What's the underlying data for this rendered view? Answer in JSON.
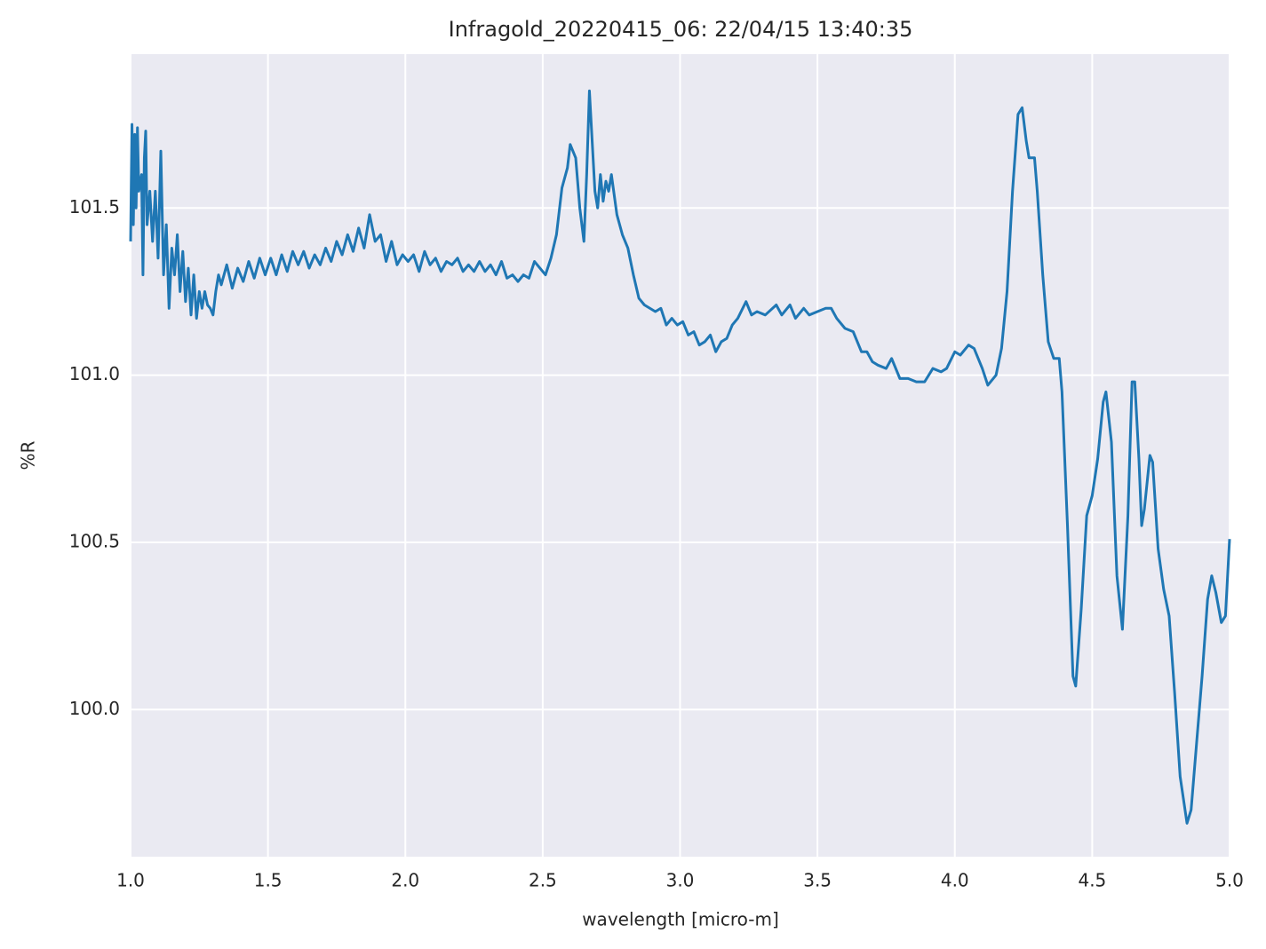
{
  "chart_data": {
    "type": "line",
    "title": "Infragold_20220415_06:  22/04/15 13:40:35",
    "xlabel": "wavelength [micro-m]",
    "ylabel": "%R",
    "color": "#1f77b4",
    "grid": true,
    "xlim": [
      1.0,
      5.0
    ],
    "ylim": [
      99.56,
      101.96
    ],
    "xticks": [
      {
        "value": 1.0,
        "label": "1.0"
      },
      1.5,
      {
        "value": 2.0,
        "label": "2.0"
      },
      2.5,
      {
        "value": 3.0,
        "label": "3.0"
      },
      3.5,
      {
        "value": 4.0,
        "label": "4.0"
      },
      4.5,
      {
        "value": 5.0,
        "label": "5.0"
      }
    ],
    "yticks": [
      {
        "value": 100.0,
        "label": "100.0"
      },
      100.5,
      {
        "value": 101.0,
        "label": "101.0"
      },
      101.5
    ],
    "x": [
      1.0,
      1.005,
      1.01,
      1.015,
      1.02,
      1.025,
      1.03,
      1.04,
      1.045,
      1.05,
      1.055,
      1.06,
      1.07,
      1.08,
      1.09,
      1.1,
      1.11,
      1.12,
      1.13,
      1.14,
      1.15,
      1.16,
      1.17,
      1.18,
      1.19,
      1.2,
      1.21,
      1.22,
      1.23,
      1.24,
      1.25,
      1.26,
      1.27,
      1.28,
      1.29,
      1.3,
      1.31,
      1.32,
      1.33,
      1.35,
      1.37,
      1.39,
      1.41,
      1.43,
      1.45,
      1.47,
      1.49,
      1.51,
      1.53,
      1.55,
      1.57,
      1.59,
      1.61,
      1.63,
      1.65,
      1.67,
      1.69,
      1.71,
      1.73,
      1.75,
      1.77,
      1.79,
      1.81,
      1.83,
      1.85,
      1.87,
      1.89,
      1.91,
      1.93,
      1.95,
      1.97,
      1.99,
      2.01,
      2.03,
      2.05,
      2.07,
      2.09,
      2.11,
      2.13,
      2.15,
      2.17,
      2.19,
      2.21,
      2.23,
      2.25,
      2.27,
      2.29,
      2.31,
      2.33,
      2.35,
      2.37,
      2.39,
      2.41,
      2.43,
      2.45,
      2.47,
      2.49,
      2.51,
      2.53,
      2.55,
      2.57,
      2.59,
      2.6,
      2.62,
      2.635,
      2.65,
      2.66,
      2.67,
      2.68,
      2.69,
      2.7,
      2.71,
      2.72,
      2.73,
      2.74,
      2.75,
      2.77,
      2.79,
      2.81,
      2.83,
      2.85,
      2.87,
      2.89,
      2.91,
      2.93,
      2.95,
      2.97,
      2.99,
      3.01,
      3.03,
      3.05,
      3.07,
      3.09,
      3.11,
      3.13,
      3.15,
      3.17,
      3.19,
      3.21,
      3.24,
      3.26,
      3.28,
      3.31,
      3.35,
      3.37,
      3.4,
      3.42,
      3.45,
      3.47,
      3.5,
      3.53,
      3.55,
      3.57,
      3.6,
      3.63,
      3.66,
      3.68,
      3.7,
      3.72,
      3.75,
      3.77,
      3.8,
      3.83,
      3.86,
      3.89,
      3.92,
      3.95,
      3.97,
      4.0,
      4.02,
      4.05,
      4.07,
      4.1,
      4.12,
      4.15,
      4.17,
      4.19,
      4.21,
      4.23,
      4.245,
      4.26,
      4.27,
      4.29,
      4.3,
      4.32,
      4.34,
      4.36,
      4.38,
      4.39,
      4.41,
      4.43,
      4.44,
      4.46,
      4.48,
      4.5,
      4.52,
      4.54,
      4.55,
      4.57,
      4.59,
      4.61,
      4.63,
      4.645,
      4.655,
      4.67,
      4.68,
      4.69,
      4.71,
      4.72,
      4.74,
      4.76,
      4.78,
      4.8,
      4.82,
      4.845,
      4.86,
      4.88,
      4.9,
      4.92,
      4.935,
      4.95,
      4.97,
      4.985,
      5.0
    ],
    "values": [
      101.4,
      101.75,
      101.45,
      101.72,
      101.5,
      101.74,
      101.55,
      101.6,
      101.3,
      101.65,
      101.73,
      101.45,
      101.55,
      101.4,
      101.55,
      101.35,
      101.67,
      101.3,
      101.45,
      101.2,
      101.38,
      101.3,
      101.42,
      101.25,
      101.37,
      101.22,
      101.32,
      101.18,
      101.3,
      101.17,
      101.25,
      101.2,
      101.25,
      101.21,
      101.2,
      101.18,
      101.25,
      101.3,
      101.27,
      101.33,
      101.26,
      101.32,
      101.28,
      101.34,
      101.29,
      101.35,
      101.3,
      101.35,
      101.3,
      101.36,
      101.31,
      101.37,
      101.33,
      101.37,
      101.32,
      101.36,
      101.33,
      101.38,
      101.34,
      101.4,
      101.36,
      101.42,
      101.37,
      101.44,
      101.38,
      101.48,
      101.4,
      101.42,
      101.34,
      101.4,
      101.33,
      101.36,
      101.34,
      101.36,
      101.31,
      101.37,
      101.33,
      101.35,
      101.31,
      101.34,
      101.33,
      101.35,
      101.31,
      101.33,
      101.31,
      101.34,
      101.31,
      101.33,
      101.3,
      101.34,
      101.29,
      101.3,
      101.28,
      101.3,
      101.29,
      101.34,
      101.32,
      101.3,
      101.35,
      101.42,
      101.56,
      101.62,
      101.69,
      101.65,
      101.5,
      101.4,
      101.6,
      101.85,
      101.7,
      101.55,
      101.5,
      101.6,
      101.52,
      101.58,
      101.55,
      101.6,
      101.48,
      101.42,
      101.38,
      101.3,
      101.23,
      101.21,
      101.2,
      101.19,
      101.2,
      101.15,
      101.17,
      101.15,
      101.16,
      101.12,
      101.13,
      101.09,
      101.1,
      101.12,
      101.07,
      101.1,
      101.11,
      101.15,
      101.17,
      101.22,
      101.18,
      101.19,
      101.18,
      101.21,
      101.18,
      101.21,
      101.17,
      101.2,
      101.18,
      101.19,
      101.2,
      101.2,
      101.17,
      101.14,
      101.13,
      101.07,
      101.07,
      101.04,
      101.03,
      101.02,
      101.05,
      100.99,
      100.99,
      100.98,
      100.98,
      101.02,
      101.01,
      101.02,
      101.07,
      101.06,
      101.09,
      101.08,
      101.02,
      100.97,
      101.0,
      101.08,
      101.25,
      101.55,
      101.78,
      101.8,
      101.7,
      101.65,
      101.65,
      101.55,
      101.3,
      101.1,
      101.05,
      101.05,
      100.95,
      100.55,
      100.1,
      100.07,
      100.3,
      100.58,
      100.64,
      100.75,
      100.92,
      100.95,
      100.8,
      100.4,
      100.24,
      100.58,
      100.98,
      100.98,
      100.75,
      100.55,
      100.6,
      100.76,
      100.74,
      100.48,
      100.36,
      100.28,
      100.05,
      99.8,
      99.66,
      99.7,
      99.9,
      100.1,
      100.33,
      100.4,
      100.35,
      100.26,
      100.28,
      100.51
    ]
  }
}
